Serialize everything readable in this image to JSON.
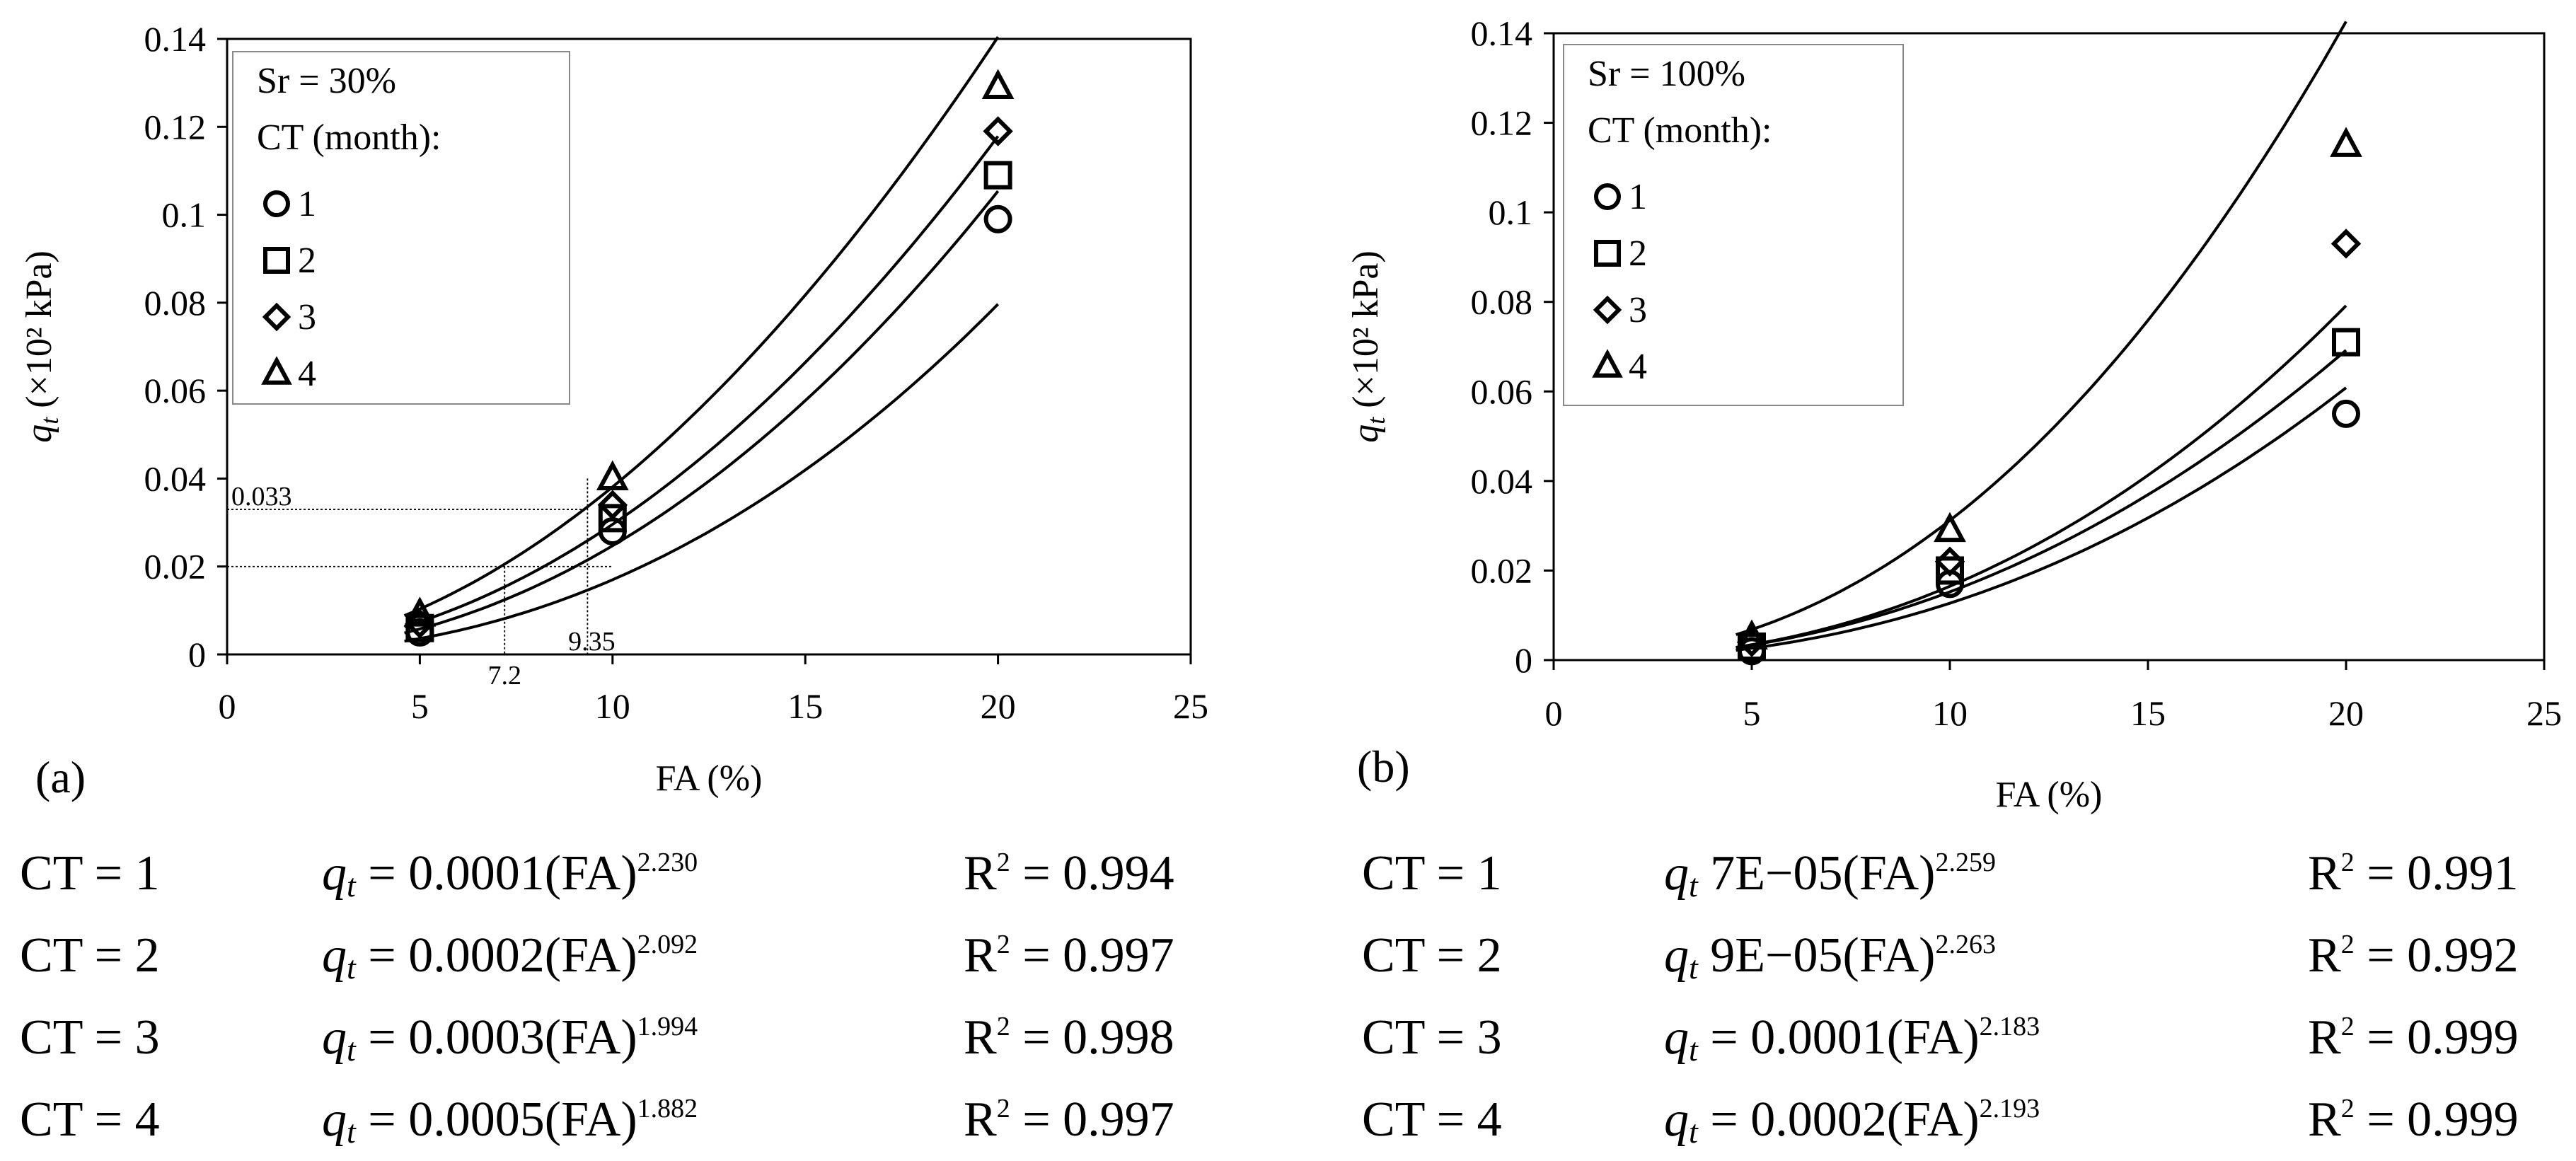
{
  "chart_data": [
    {
      "type": "scatter",
      "panel_label": "(a)",
      "xlabel": "FA (%)",
      "ylabel": "q_t (×10² kPa)",
      "xlim": [
        0,
        25
      ],
      "ylim": [
        0,
        0.14
      ],
      "xticks": [
        0,
        5,
        10,
        15,
        20,
        25
      ],
      "yticks": [
        0,
        0.02,
        0.04,
        0.06,
        0.08,
        0.1,
        0.12,
        0.14
      ],
      "legend_title_1": "Sr = 30%",
      "legend_title_2": "CT (month):",
      "series": [
        {
          "name": "1",
          "marker": "circle",
          "x": [
            5,
            10,
            20
          ],
          "values": [
            0.005,
            0.028,
            0.099
          ],
          "fit": {
            "a": 0.0001,
            "b": 2.23
          }
        },
        {
          "name": "2",
          "marker": "square",
          "x": [
            5,
            10,
            20
          ],
          "values": [
            0.006,
            0.031,
            0.109
          ],
          "fit": {
            "a": 0.0002,
            "b": 2.092
          }
        },
        {
          "name": "3",
          "marker": "diamond",
          "x": [
            5,
            10,
            20
          ],
          "values": [
            0.007,
            0.034,
            0.119
          ],
          "fit": {
            "a": 0.0003,
            "b": 1.994
          }
        },
        {
          "name": "4",
          "marker": "triangle",
          "x": [
            5,
            10,
            20
          ],
          "values": [
            0.009,
            0.04,
            0.129
          ],
          "fit": {
            "a": 0.0005,
            "b": 1.882
          }
        }
      ],
      "annotations": [
        {
          "label": "0.033",
          "y": 0.033,
          "x_to": 9.35
        },
        {
          "label": "7.2",
          "x": 7.2,
          "y_to": 0.02
        },
        {
          "label": "9.35",
          "x": 9.35,
          "y_to": 0.033
        }
      ],
      "guide_y2": 0.02,
      "guide_y2_x_end": 10,
      "guide_v2_top": 0.04
    },
    {
      "type": "scatter",
      "panel_label": "(b)",
      "xlabel": "FA (%)",
      "ylabel": "q_t (×10² kPa)",
      "xlim": [
        0,
        25
      ],
      "ylim": [
        0,
        0.14
      ],
      "xticks": [
        0,
        5,
        10,
        15,
        20,
        25
      ],
      "yticks": [
        0,
        0.02,
        0.04,
        0.06,
        0.08,
        0.1,
        0.12,
        0.14
      ],
      "legend_title_1": "Sr = 100%",
      "legend_title_2": "CT (month):",
      "series": [
        {
          "name": "1",
          "marker": "circle",
          "x": [
            5,
            10,
            20
          ],
          "values": [
            0.002,
            0.017,
            0.055
          ],
          "fit": {
            "a": 7e-05,
            "b": 2.259
          }
        },
        {
          "name": "2",
          "marker": "square",
          "x": [
            5,
            10,
            20
          ],
          "values": [
            0.003,
            0.02,
            0.071
          ],
          "fit": {
            "a": 9e-05,
            "b": 2.263
          }
        },
        {
          "name": "3",
          "marker": "diamond",
          "x": [
            5,
            10,
            20
          ],
          "values": [
            0.004,
            0.022,
            0.093
          ],
          "fit": {
            "a": 0.0001,
            "b": 2.183
          }
        },
        {
          "name": "4",
          "marker": "triangle",
          "x": [
            5,
            10,
            20
          ],
          "values": [
            0.005,
            0.029,
            0.115
          ],
          "fit": {
            "a": 0.0002,
            "b": 2.193
          }
        }
      ]
    }
  ],
  "equations": {
    "a": [
      {
        "ct": "CT = 1",
        "coef": " = 0.0001(FA)",
        "exp": "2.230",
        "r2": " = 0.994"
      },
      {
        "ct": "CT = 2",
        "coef": " = 0.0002(FA)",
        "exp": "2.092",
        "r2": " = 0.997"
      },
      {
        "ct": "CT = 3",
        "coef": " = 0.0003(FA)",
        "exp": "1.994",
        "r2": " = 0.998"
      },
      {
        "ct": "CT = 4",
        "coef": " = 0.0005(FA)",
        "exp": "1.882",
        "r2": " = 0.997"
      }
    ],
    "b": [
      {
        "ct": "CT = 1",
        "coef": " 7E−05(FA)",
        "exp": "2.259",
        "r2": " = 0.991"
      },
      {
        "ct": "CT = 2",
        "coef": " 9E−05(FA)",
        "exp": "2.263",
        "r2": " = 0.992"
      },
      {
        "ct": "CT = 3",
        "coef": " = 0.0001(FA)",
        "exp": "2.183",
        "r2": " = 0.999"
      },
      {
        "ct": "CT = 4",
        "coef": " = 0.0002(FA)",
        "exp": "2.193",
        "r2": " = 0.999"
      }
    ],
    "q_symbol": "q",
    "q_sub": "t",
    "r2_symbol": "R",
    "r2_sup": "2"
  }
}
